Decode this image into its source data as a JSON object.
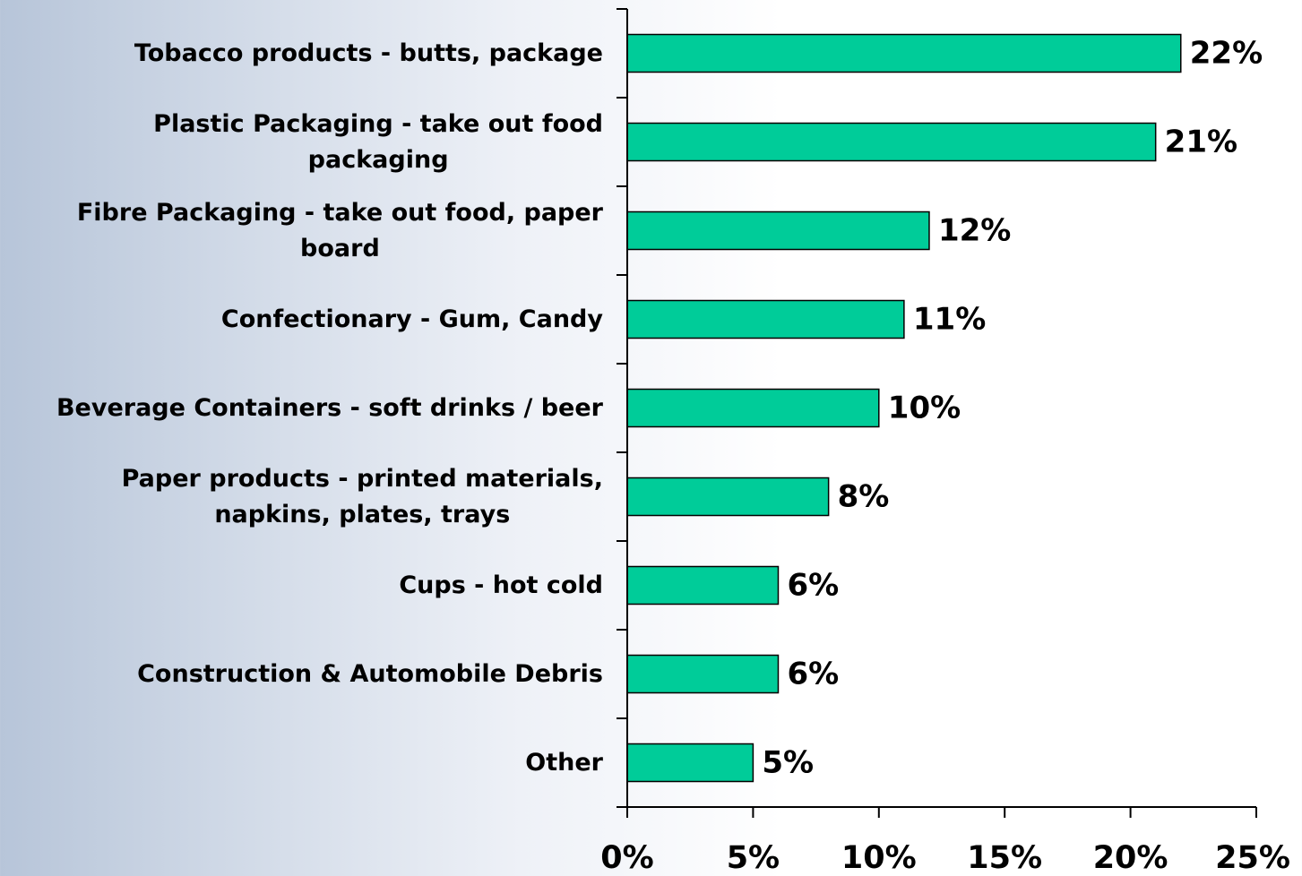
{
  "chart_data": {
    "type": "bar",
    "orientation": "horizontal",
    "categories": [
      "Tobacco products - butts, package",
      "Plastic Packaging - take out food packaging",
      "Fibre Packaging - take out food, paper board",
      "Confectionary - Gum, Candy",
      "Beverage Containers - soft drinks / beer",
      "Paper products  - printed materials, napkins, plates, trays",
      "Cups - hot cold",
      "Construction  & Automobile Debris",
      "Other"
    ],
    "category_lines": [
      [
        "Tobacco products - butts, package"
      ],
      [
        "Plastic Packaging - take out food",
        "packaging"
      ],
      [
        "Fibre Packaging - take out food, paper",
        "board"
      ],
      [
        "Confectionary - Gum, Candy"
      ],
      [
        "Beverage Containers - soft drinks / beer"
      ],
      [
        "Paper products  - printed materials,",
        "napkins, plates, trays"
      ],
      [
        "Cups - hot cold"
      ],
      [
        "Construction  & Automobile Debris"
      ],
      [
        "Other"
      ]
    ],
    "values": [
      22,
      21,
      12,
      11,
      10,
      8,
      6,
      6,
      5
    ],
    "data_labels": [
      "22%",
      "21%",
      "12%",
      "11%",
      "10%",
      "8%",
      "6%",
      "6%",
      "5%"
    ],
    "xlim": [
      0,
      25
    ],
    "x_ticks": [
      0,
      5,
      10,
      15,
      20,
      25
    ],
    "x_tick_labels": [
      "0%",
      "5%",
      "10%",
      "15%",
      "20%",
      "25%"
    ],
    "title": "",
    "xlabel": "",
    "ylabel": "",
    "grid": false,
    "legend": "none",
    "bar_color": "#00cc99",
    "bar_edge_color": "#000000"
  }
}
